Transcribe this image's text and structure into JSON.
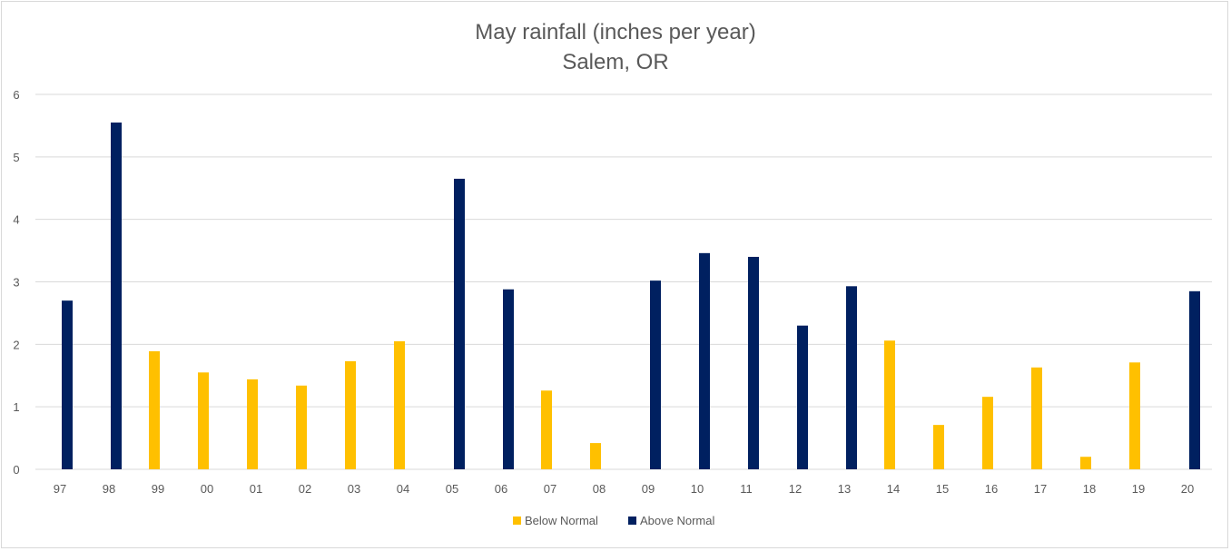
{
  "chart_data": {
    "type": "bar",
    "title": "May rainfall (inches per year)",
    "subtitle": "Salem, OR",
    "xlabel": "",
    "ylabel": "",
    "ylim": [
      0,
      6
    ],
    "yticks": [
      "0",
      "1",
      "2",
      "3",
      "4",
      "5",
      "6"
    ],
    "grid": true,
    "legend_position": "bottom",
    "categories": [
      "97",
      "98",
      "99",
      "00",
      "01",
      "02",
      "03",
      "04",
      "05",
      "06",
      "07",
      "08",
      "09",
      "10",
      "11",
      "12",
      "13",
      "14",
      "15",
      "16",
      "17",
      "18",
      "19",
      "20"
    ],
    "series": [
      {
        "name": "Below Normal",
        "color": "#FFC000",
        "values": [
          null,
          null,
          1.89,
          1.55,
          1.44,
          1.34,
          1.73,
          2.05,
          null,
          null,
          1.26,
          0.42,
          null,
          null,
          null,
          null,
          null,
          2.06,
          0.71,
          1.16,
          1.63,
          0.2,
          1.71,
          null
        ]
      },
      {
        "name": "Above Normal",
        "color": "#002060",
        "values": [
          2.7,
          5.55,
          null,
          null,
          null,
          null,
          null,
          null,
          4.65,
          2.88,
          null,
          null,
          3.02,
          3.46,
          3.4,
          2.3,
          2.93,
          null,
          null,
          null,
          null,
          null,
          null,
          2.85
        ]
      }
    ]
  }
}
